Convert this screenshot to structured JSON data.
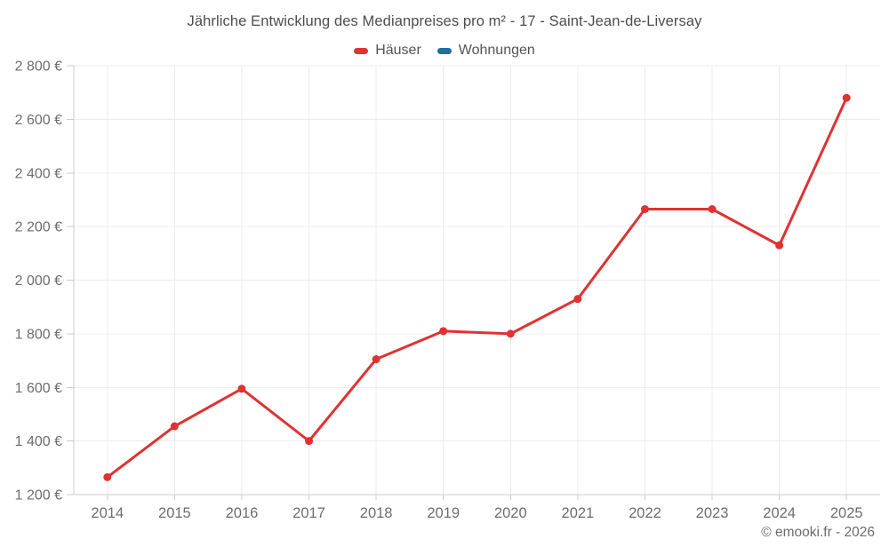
{
  "page": {
    "title": "Jährliche Entwicklung des Medianpreises pro m² - 17 - Saint-Jean-de-Liversay",
    "footer": "© emooki.fr - 2026"
  },
  "legend": {
    "items": [
      {
        "label": "Häuser",
        "color": "#e03232"
      },
      {
        "label": "Wohnungen",
        "color": "#1a6fa5"
      }
    ]
  },
  "chart_data": {
    "type": "line",
    "title": "Jährliche Entwicklung des Medianpreises pro m² - 17 - Saint-Jean-de-Liversay",
    "categories": [
      "2014",
      "2015",
      "2016",
      "2017",
      "2018",
      "2019",
      "2020",
      "2021",
      "2022",
      "2023",
      "2024",
      "2025"
    ],
    "series": [
      {
        "name": "Häuser",
        "color": "#e03232",
        "values": [
          1265,
          1455,
          1595,
          1400,
          1705,
          1810,
          1800,
          1930,
          2265,
          2265,
          2130,
          2680
        ]
      },
      {
        "name": "Wohnungen",
        "color": "#1a6fa5",
        "values": []
      }
    ],
    "xlabel": "",
    "ylabel": "",
    "y_axis": {
      "min": 1200,
      "max": 2800,
      "step": 200,
      "unit": "€",
      "tick_labels": [
        "1 200 €",
        "1 400 €",
        "1 600 €",
        "1 800 €",
        "2 000 €",
        "2 200 €",
        "2 400 €",
        "2 600 €",
        "2 800 €"
      ]
    },
    "grid": true,
    "legend_position": "top"
  },
  "style": {
    "grid_color": "#ececec",
    "axis_color": "#cccccc",
    "tick_text_color": "#6e6e6e",
    "series_red": "#e03232",
    "series_blue": "#1a6fa5"
  }
}
